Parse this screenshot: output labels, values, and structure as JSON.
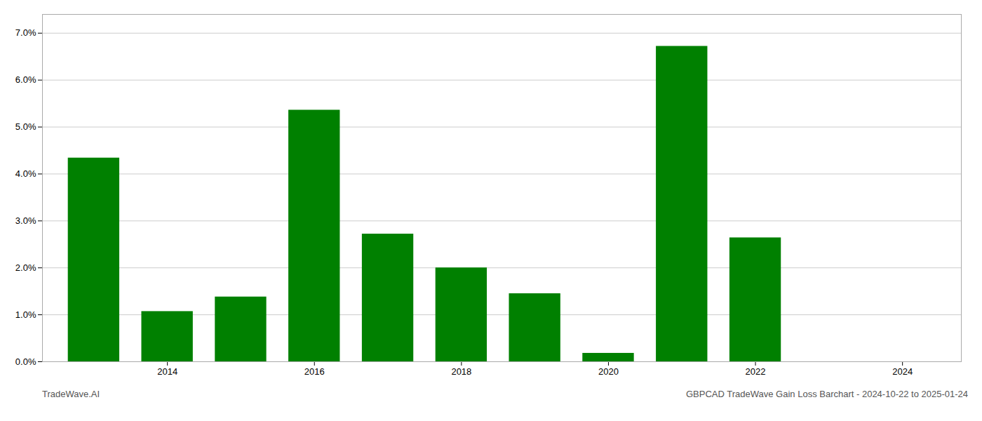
{
  "chart_data": {
    "type": "bar",
    "title": "GBPCAD TradeWave Gain Loss Barchart - 2024-10-22 to 2025-01-24",
    "annotations": [
      "TradeWave.AI"
    ],
    "x": [
      2013,
      2014,
      2015,
      2016,
      2017,
      2018,
      2019,
      2020,
      2021,
      2022,
      2023,
      2024
    ],
    "values": [
      0.0434,
      0.0107,
      0.0138,
      0.0536,
      0.0272,
      0.02,
      0.0145,
      0.0018,
      0.0672,
      0.0264,
      0.0,
      0.0
    ],
    "color": "#008000",
    "xlim": [
      2012.3,
      2024.8
    ],
    "xticks": [
      2014,
      2016,
      2018,
      2020,
      2022,
      2024
    ],
    "ylim": [
      0,
      0.074
    ],
    "yticks": [
      {
        "value": 0.0,
        "label": "0.0%"
      },
      {
        "value": 0.01,
        "label": "1.0%"
      },
      {
        "value": 0.02,
        "label": "2.0%"
      },
      {
        "value": 0.03,
        "label": "3.0%"
      },
      {
        "value": 0.04,
        "label": "4.0%"
      },
      {
        "value": 0.05,
        "label": "5.0%"
      },
      {
        "value": 0.06,
        "label": "6.0%"
      },
      {
        "value": 0.07,
        "label": "7.0%"
      }
    ],
    "grid": true
  }
}
